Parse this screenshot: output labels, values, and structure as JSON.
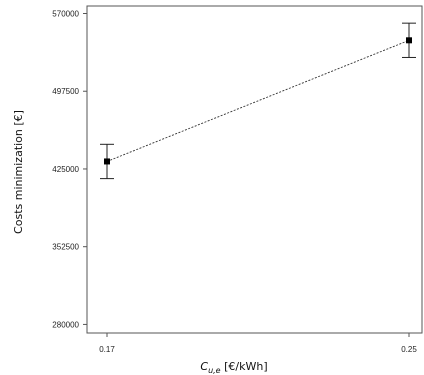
{
  "chart_data": {
    "type": "line",
    "title": "",
    "xlabel_main": "C",
    "xlabel_sub": "u,e",
    "xlabel_unit": " [€/kWh]",
    "ylabel": "Costs minimization [€]",
    "x": [
      0.17,
      0.25
    ],
    "x_tick_labels": [
      "0.17",
      "0.25"
    ],
    "y_ticks": [
      280000,
      352500,
      425000,
      497500,
      570000
    ],
    "y_tick_labels": [
      "280000",
      "352500",
      "425000",
      "497500",
      "570000"
    ],
    "ylim": [
      272000,
      577000
    ],
    "series": [
      {
        "values": [
          432000,
          545000
        ],
        "error_low": [
          416000,
          529000
        ],
        "error_high": [
          448000,
          561000
        ]
      }
    ],
    "line_style": "dotted",
    "marker": "square",
    "grid": false,
    "legend": "none"
  }
}
